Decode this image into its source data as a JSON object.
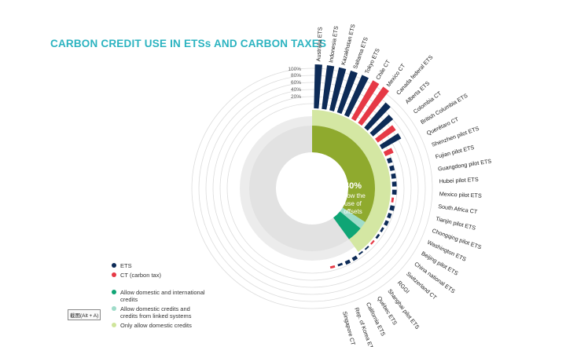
{
  "title": "CARBON CREDIT USE IN ETSs AND CARBON TAXES",
  "chart_data": {
    "type": "radial-bar",
    "center": {
      "value": "40%",
      "text": [
        "allow the",
        "use of",
        "offsets"
      ]
    },
    "radial_ticks": [
      "100%",
      "80%",
      "60%",
      "40%",
      "20%"
    ],
    "legend": [
      {
        "label": "ETS",
        "color": "#0d2b57"
      },
      {
        "label": "CT (carbon tax)",
        "color": "#e63946"
      },
      {
        "label": "Allow domestic and international credits",
        "color": "#0fa575"
      },
      {
        "label": "Allow domestic credits and credits from linked systems",
        "color": "#9fdcc9"
      },
      {
        "label": "Only allow domestic credits",
        "color": "#cfe59b"
      }
    ],
    "segments": [
      {
        "key": "domestic",
        "label": "Only allow domestic credits",
        "share": 0.34,
        "color": "#8faa2e"
      },
      {
        "key": "linked",
        "label": "Allow domestic credits and credits from linked systems",
        "share": 0.02,
        "color": "#9fdcc9"
      },
      {
        "key": "international",
        "label": "Allow domestic and international credits",
        "share": 0.04,
        "color": "#0fa575"
      }
    ],
    "bars": [
      {
        "name": "Australia ETS",
        "type": "ETS",
        "value": 1.0
      },
      {
        "name": "Indonesia ETS",
        "type": "ETS",
        "value": 1.0
      },
      {
        "name": "Kazakhstan ETS",
        "type": "ETS",
        "value": 1.0
      },
      {
        "name": "Saitama ETS",
        "type": "ETS",
        "value": 1.0
      },
      {
        "name": "Tokyo ETS",
        "type": "ETS",
        "value": 1.0
      },
      {
        "name": "Chile CT",
        "type": "CT",
        "value": 1.0
      },
      {
        "name": "Mexico CT",
        "type": "CT",
        "value": 1.0
      },
      {
        "name": "Canada federal ETS",
        "type": "ETS",
        "value": 0.75
      },
      {
        "name": "Alberta ETS",
        "type": "ETS",
        "value": 0.6
      },
      {
        "name": "Colombia CT",
        "type": "CT",
        "value": 0.5
      },
      {
        "name": "British Columbia ETS",
        "type": "ETS",
        "value": 0.5
      },
      {
        "name": "Querétaro CT",
        "type": "CT",
        "value": 0.2
      },
      {
        "name": "Shenzhen pilot ETS",
        "type": "ETS",
        "value": 0.1
      },
      {
        "name": "Fujian pilot ETS",
        "type": "ETS",
        "value": 0.1
      },
      {
        "name": "Guangdong pilot ETS",
        "type": "ETS",
        "value": 0.1
      },
      {
        "name": "Hubei pilot ETS",
        "type": "ETS",
        "value": 0.1
      },
      {
        "name": "Mexico pilot ETS",
        "type": "ETS",
        "value": 0.1
      },
      {
        "name": "South Africa CT",
        "type": "CT",
        "value": 0.05
      },
      {
        "name": "Tianjin pilot ETS",
        "type": "ETS",
        "value": 0.1
      },
      {
        "name": "Chongqing pilot ETS",
        "type": "ETS",
        "value": 0.08
      },
      {
        "name": "Washington ETS",
        "type": "ETS",
        "value": 0.08
      },
      {
        "name": "Beijing pilot ETS",
        "type": "ETS",
        "value": 0.05
      },
      {
        "name": "China national ETS",
        "type": "ETS",
        "value": 0.05
      },
      {
        "name": "Switzerland CT",
        "type": "CT",
        "value": 0.04
      },
      {
        "name": "RGGI",
        "type": "ETS",
        "value": 0.03
      },
      {
        "name": "Shanghai pilot ETS",
        "type": "ETS",
        "value": 0.03
      },
      {
        "name": "Québec ETS",
        "type": "ETS",
        "value": 0.08
      },
      {
        "name": "California ETS",
        "type": "ETS",
        "value": 0.08
      },
      {
        "name": "Rep. of Korea ETS",
        "type": "ETS",
        "value": 0.05
      },
      {
        "name": "Singapore CT",
        "type": "CT",
        "value": 0.05
      }
    ]
  },
  "screenshot_tag": "截图(Alt + A)"
}
